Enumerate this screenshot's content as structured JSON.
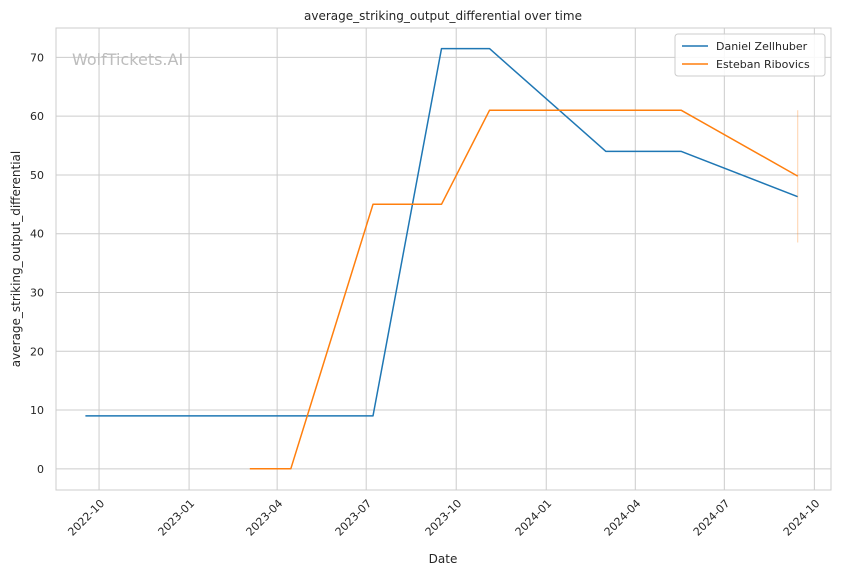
{
  "chart_data": {
    "type": "line",
    "title": "average_striking_output_differential over time",
    "xlabel": "Date",
    "ylabel": "average_striking_output_differential",
    "watermark": "WolfTickets.AI",
    "x_ticks": [
      "2022-10",
      "2023-01",
      "2023-04",
      "2023-07",
      "2023-10",
      "2024-01",
      "2024-04",
      "2024-07",
      "2024-10"
    ],
    "y_ticks": [
      0,
      10,
      20,
      30,
      40,
      50,
      60,
      70
    ],
    "xlim": [
      "2022-08-18",
      "2024-10-18"
    ],
    "ylim": [
      -3.6,
      75
    ],
    "grid": true,
    "legend_position": "top-right",
    "series": [
      {
        "name": "Daniel Zellhuber",
        "color": "#1f77b4",
        "points": [
          [
            "2022-09-17",
            9
          ],
          [
            "2023-07-08",
            9
          ],
          [
            "2023-09-16",
            71.5
          ],
          [
            "2023-11-04",
            71.5
          ],
          [
            "2024-03-02",
            54
          ],
          [
            "2024-05-18",
            54
          ],
          [
            "2024-09-14",
            46.3
          ]
        ]
      },
      {
        "name": "Esteban Ribovics",
        "color": "#ff7f0e",
        "points": [
          [
            "2023-03-04",
            0
          ],
          [
            "2023-04-15",
            0
          ],
          [
            "2023-07-08",
            45
          ],
          [
            "2023-09-16",
            45
          ],
          [
            "2023-11-04",
            61
          ],
          [
            "2024-05-18",
            61
          ],
          [
            "2024-09-14",
            49.8
          ]
        ],
        "error_bar": {
          "x": "2024-09-14",
          "low": 38.5,
          "high": 61
        }
      }
    ]
  }
}
